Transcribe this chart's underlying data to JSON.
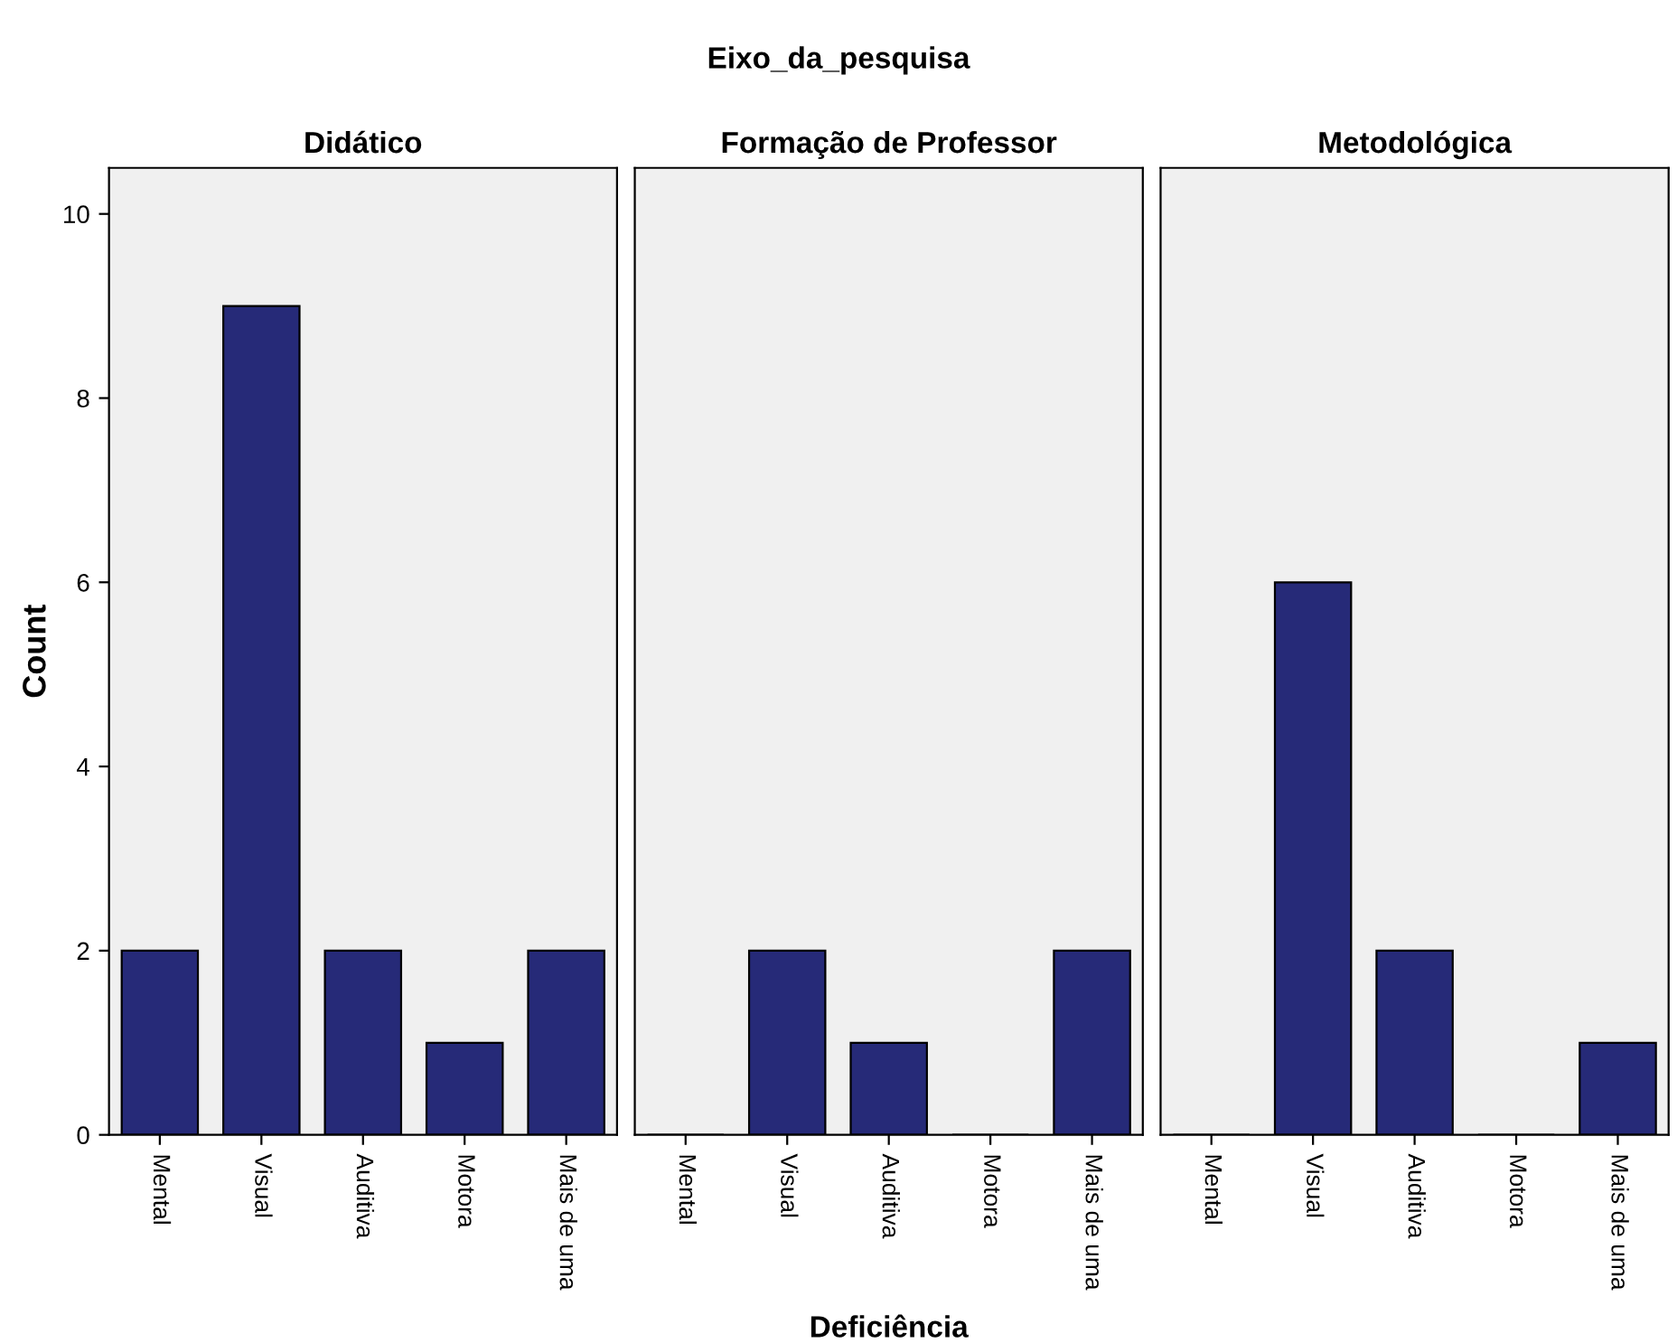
{
  "chart_data": [
    {
      "type": "bar",
      "title": "Didático",
      "ylabel": "Count",
      "annotations": [
        "Eixo_da_pesquisa"
      ],
      "categories": [
        "Mental",
        "Visual",
        "Auditiva",
        "Motora",
        "Mais de uma"
      ],
      "values": [
        2,
        9,
        2,
        1,
        2
      ],
      "color": "#262a78",
      "ylim": [
        0,
        10.5
      ],
      "yticks": [
        0,
        2,
        4,
        6,
        8,
        10
      ]
    },
    {
      "type": "bar",
      "title": "Formação de Professor",
      "xlabel": "Deficiência",
      "categories": [
        "Mental",
        "Visual",
        "Auditiva",
        "Motora",
        "Mais de uma"
      ],
      "values": [
        0,
        2,
        1,
        0,
        2
      ],
      "color": "#262a78",
      "ylim": [
        0,
        10.5
      ],
      "yticks": [
        0,
        2,
        4,
        6,
        8,
        10
      ],
      "tick_labels": "x"
    },
    {
      "type": "bar",
      "title": "Metodológica",
      "categories": [
        "Mental",
        "Visual",
        "Auditiva",
        "Motora",
        "Mais de uma"
      ],
      "values": [
        0,
        6,
        2,
        0,
        1
      ],
      "color": "#262a78",
      "ylim": [
        0,
        10.5
      ],
      "yticks": [
        0,
        2,
        4,
        6,
        8,
        10
      ],
      "tick_labels": "x"
    }
  ]
}
